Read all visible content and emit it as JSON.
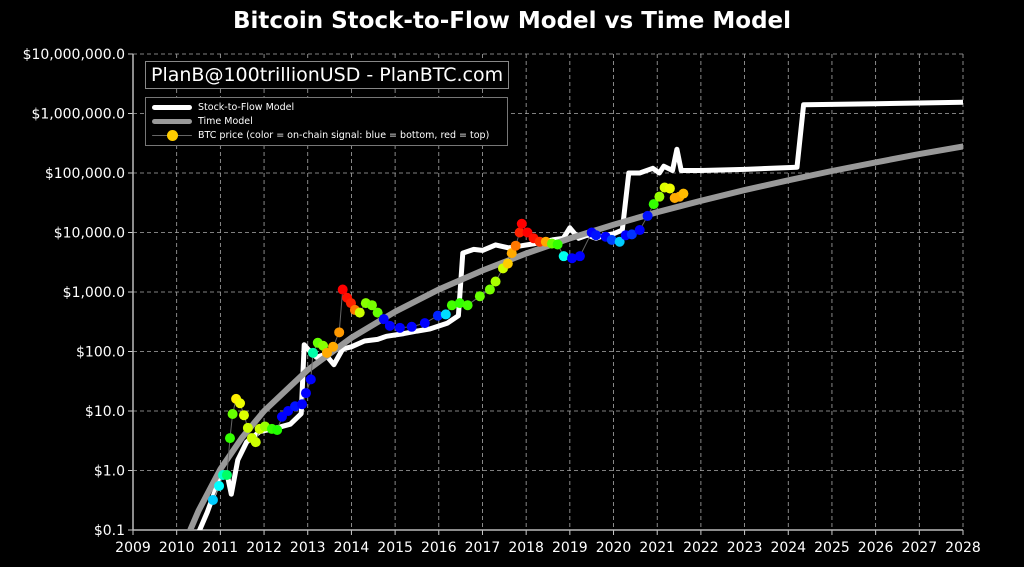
{
  "chart_data": {
    "type": "line",
    "title": "Bitcoin Stock-to-Flow Model vs Time Model",
    "watermark": "PlanB@100trillionUSD - PlanBTC.com",
    "x_range": [
      2009,
      2028
    ],
    "y_range": [
      0.1,
      10000000
    ],
    "y_scale": "log",
    "grid": true,
    "legend_placement": "top-left",
    "x_ticks": [
      "2009",
      "2010",
      "2011",
      "2012",
      "2013",
      "2014",
      "2015",
      "2016",
      "2017",
      "2018",
      "2019",
      "2020",
      "2021",
      "2022",
      "2023",
      "2024",
      "2025",
      "2026",
      "2027",
      "2028"
    ],
    "y_ticks": [
      "$0.1",
      "$1.0",
      "$10.0",
      "$100.0",
      "$1,000.0",
      "$10,000.0",
      "$100,000.0",
      "$1,000,000.0",
      "$10,000,000.0"
    ],
    "series": [
      {
        "name": "Stock-to-Flow Model",
        "color": "#ffffff",
        "points": [
          [
            2010.5,
            0.09
          ],
          [
            2010.7,
            0.2
          ],
          [
            2010.9,
            0.5
          ],
          [
            2011.0,
            0.8
          ],
          [
            2011.15,
            0.9
          ],
          [
            2011.25,
            0.4
          ],
          [
            2011.4,
            1.5
          ],
          [
            2011.6,
            3
          ],
          [
            2011.9,
            4.5
          ],
          [
            2012.2,
            5
          ],
          [
            2012.6,
            6
          ],
          [
            2012.85,
            9
          ],
          [
            2012.92,
            130
          ],
          [
            2013.0,
            110
          ],
          [
            2013.2,
            80
          ],
          [
            2013.4,
            90
          ],
          [
            2013.6,
            60
          ],
          [
            2013.8,
            110
          ],
          [
            2014.0,
            120
          ],
          [
            2014.3,
            150
          ],
          [
            2014.6,
            160
          ],
          [
            2014.8,
            180
          ],
          [
            2015.2,
            200
          ],
          [
            2015.5,
            220
          ],
          [
            2015.8,
            240
          ],
          [
            2016.2,
            300
          ],
          [
            2016.45,
            400
          ],
          [
            2016.55,
            4500
          ],
          [
            2016.8,
            5200
          ],
          [
            2017.0,
            5000
          ],
          [
            2017.3,
            6200
          ],
          [
            2017.6,
            5500
          ],
          [
            2017.9,
            6000
          ],
          [
            2018.2,
            6500
          ],
          [
            2018.4,
            7000
          ],
          [
            2018.6,
            7500
          ],
          [
            2018.85,
            8000
          ],
          [
            2019.0,
            12000
          ],
          [
            2019.2,
            8000
          ],
          [
            2019.4,
            9000
          ],
          [
            2019.6,
            8000
          ],
          [
            2019.8,
            9000
          ],
          [
            2020.0,
            9500
          ],
          [
            2020.2,
            11000
          ],
          [
            2020.35,
            100000
          ],
          [
            2020.6,
            100000
          ],
          [
            2020.9,
            120000
          ],
          [
            2021.05,
            100000
          ],
          [
            2021.15,
            130000
          ],
          [
            2021.35,
            110000
          ],
          [
            2021.45,
            250000
          ],
          [
            2021.55,
            110000
          ],
          [
            2022,
            110000
          ],
          [
            2023,
            115000
          ],
          [
            2024.2,
            125000
          ],
          [
            2024.35,
            1400000
          ],
          [
            2025,
            1420000
          ],
          [
            2026,
            1460000
          ],
          [
            2027,
            1500000
          ],
          [
            2028,
            1550000
          ]
        ]
      },
      {
        "name": "Time Model",
        "color": "#999999",
        "points": [
          [
            2010.3,
            0.096
          ],
          [
            2010.5,
            0.21
          ],
          [
            2011,
            1.05
          ],
          [
            2011.5,
            3.6
          ],
          [
            2012,
            10
          ],
          [
            2013,
            49
          ],
          [
            2014,
            170
          ],
          [
            2015,
            467
          ],
          [
            2016,
            1100
          ],
          [
            2017,
            2300
          ],
          [
            2018,
            4430
          ],
          [
            2019,
            7950
          ],
          [
            2020,
            13500
          ],
          [
            2021,
            21900
          ],
          [
            2022,
            34100
          ],
          [
            2023,
            51500
          ],
          [
            2024,
            75500
          ],
          [
            2025,
            108000
          ],
          [
            2026,
            151000
          ],
          [
            2027,
            208000
          ],
          [
            2028,
            280000
          ]
        ]
      },
      {
        "name": "BTC price (color = on-chain signal: blue = bottom, red = top)",
        "color": "#ffcc00",
        "points": [
          [
            2010.83,
            0.32,
            "#00ccff"
          ],
          [
            2010.97,
            0.55,
            "#00ffff"
          ],
          [
            2011.06,
            0.84,
            "#00ffcc"
          ],
          [
            2011.15,
            0.84,
            "#00ff66"
          ],
          [
            2011.22,
            3.5,
            "#33ff00"
          ],
          [
            2011.28,
            8.9,
            "#66ff00"
          ],
          [
            2011.36,
            16,
            "#ffee00"
          ],
          [
            2011.45,
            13.5,
            "#eeff00"
          ],
          [
            2011.54,
            8.5,
            "#ddff00"
          ],
          [
            2011.63,
            5.2,
            "#ccff00"
          ],
          [
            2011.72,
            3.5,
            "#ccff00"
          ],
          [
            2011.81,
            3.0,
            "#ccff00"
          ],
          [
            2011.9,
            5,
            "#ccff00"
          ],
          [
            2012.02,
            5.5,
            "#99ff00"
          ],
          [
            2012.18,
            5,
            "#33ff00"
          ],
          [
            2012.3,
            4.8,
            "#22ff00"
          ],
          [
            2012.41,
            8,
            "#0000ff"
          ],
          [
            2012.55,
            10,
            "#0000ff"
          ],
          [
            2012.71,
            12,
            "#0011ff"
          ],
          [
            2012.87,
            13,
            "#0000ff"
          ],
          [
            2012.96,
            20,
            "#0000ff"
          ],
          [
            2013.07,
            34,
            "#0000ff"
          ],
          [
            2013.12,
            95,
            "#00ffaa"
          ],
          [
            2013.23,
            140,
            "#66ff00"
          ],
          [
            2013.35,
            125,
            "#88ff00"
          ],
          [
            2013.44,
            95,
            "#ffaa00"
          ],
          [
            2013.58,
            120,
            "#ffaa00"
          ],
          [
            2013.72,
            210,
            "#ff9900"
          ],
          [
            2013.8,
            1100,
            "#ff0000"
          ],
          [
            2013.9,
            800,
            "#ff1100"
          ],
          [
            2013.99,
            650,
            "#ff2200"
          ],
          [
            2014.08,
            500,
            "#ff7700"
          ],
          [
            2014.19,
            450,
            "#ccff00"
          ],
          [
            2014.33,
            650,
            "#88ff00"
          ],
          [
            2014.47,
            600,
            "#77ff00"
          ],
          [
            2014.6,
            450,
            "#66ff00"
          ],
          [
            2014.74,
            350,
            "#0000ff"
          ],
          [
            2014.88,
            270,
            "#0000ff"
          ],
          [
            2015.11,
            250,
            "#0000ff"
          ],
          [
            2015.38,
            260,
            "#0000ff"
          ],
          [
            2015.68,
            300,
            "#0000ff"
          ],
          [
            2015.98,
            400,
            "#0022ff"
          ],
          [
            2016.16,
            420,
            "#00ddff"
          ],
          [
            2016.3,
            600,
            "#44ff00"
          ],
          [
            2016.48,
            650,
            "#33ff00"
          ],
          [
            2016.66,
            600,
            "#44ff00"
          ],
          [
            2016.94,
            850,
            "#66ff00"
          ],
          [
            2017.17,
            1100,
            "#77ff00"
          ],
          [
            2017.3,
            1500,
            "#aaff00"
          ],
          [
            2017.47,
            2500,
            "#ccff00"
          ],
          [
            2017.58,
            3000,
            "#ffcc00"
          ],
          [
            2017.67,
            4500,
            "#ffaa00"
          ],
          [
            2017.76,
            6000,
            "#ff7700"
          ],
          [
            2017.85,
            10000,
            "#ff2200"
          ],
          [
            2017.9,
            14000,
            "#ff0000"
          ],
          [
            2018.03,
            10000,
            "#ff0000"
          ],
          [
            2018.17,
            8000,
            "#ff1100"
          ],
          [
            2018.31,
            7000,
            "#ff3300"
          ],
          [
            2018.45,
            7000,
            "#ffaa00"
          ],
          [
            2018.59,
            6500,
            "#66ff00"
          ],
          [
            2018.72,
            6300,
            "#33ff00"
          ],
          [
            2018.86,
            4000,
            "#00ffee"
          ],
          [
            2019.05,
            3700,
            "#0000ff"
          ],
          [
            2019.23,
            4000,
            "#0000ff"
          ],
          [
            2019.5,
            10000,
            "#0000ff"
          ],
          [
            2019.6,
            9000,
            "#0011ff"
          ],
          [
            2019.82,
            8500,
            "#0000ff"
          ],
          [
            2019.96,
            7500,
            "#0044ff"
          ],
          [
            2020.14,
            7000,
            "#00ccff"
          ],
          [
            2020.28,
            9000,
            "#0000ff"
          ],
          [
            2020.42,
            9300,
            "#0033ff"
          ],
          [
            2020.6,
            11000,
            "#0000ff"
          ],
          [
            2020.78,
            19000,
            "#0011ff"
          ],
          [
            2020.92,
            30000,
            "#33ff00"
          ],
          [
            2021.05,
            40000,
            "#99ff00"
          ],
          [
            2021.17,
            57000,
            "#ddff00"
          ],
          [
            2021.29,
            55000,
            "#eeff00"
          ],
          [
            2021.4,
            38000,
            "#ffaa00"
          ],
          [
            2021.51,
            40000,
            "#ffaa00"
          ],
          [
            2021.6,
            45000,
            "#ffbb00"
          ]
        ]
      }
    ]
  }
}
